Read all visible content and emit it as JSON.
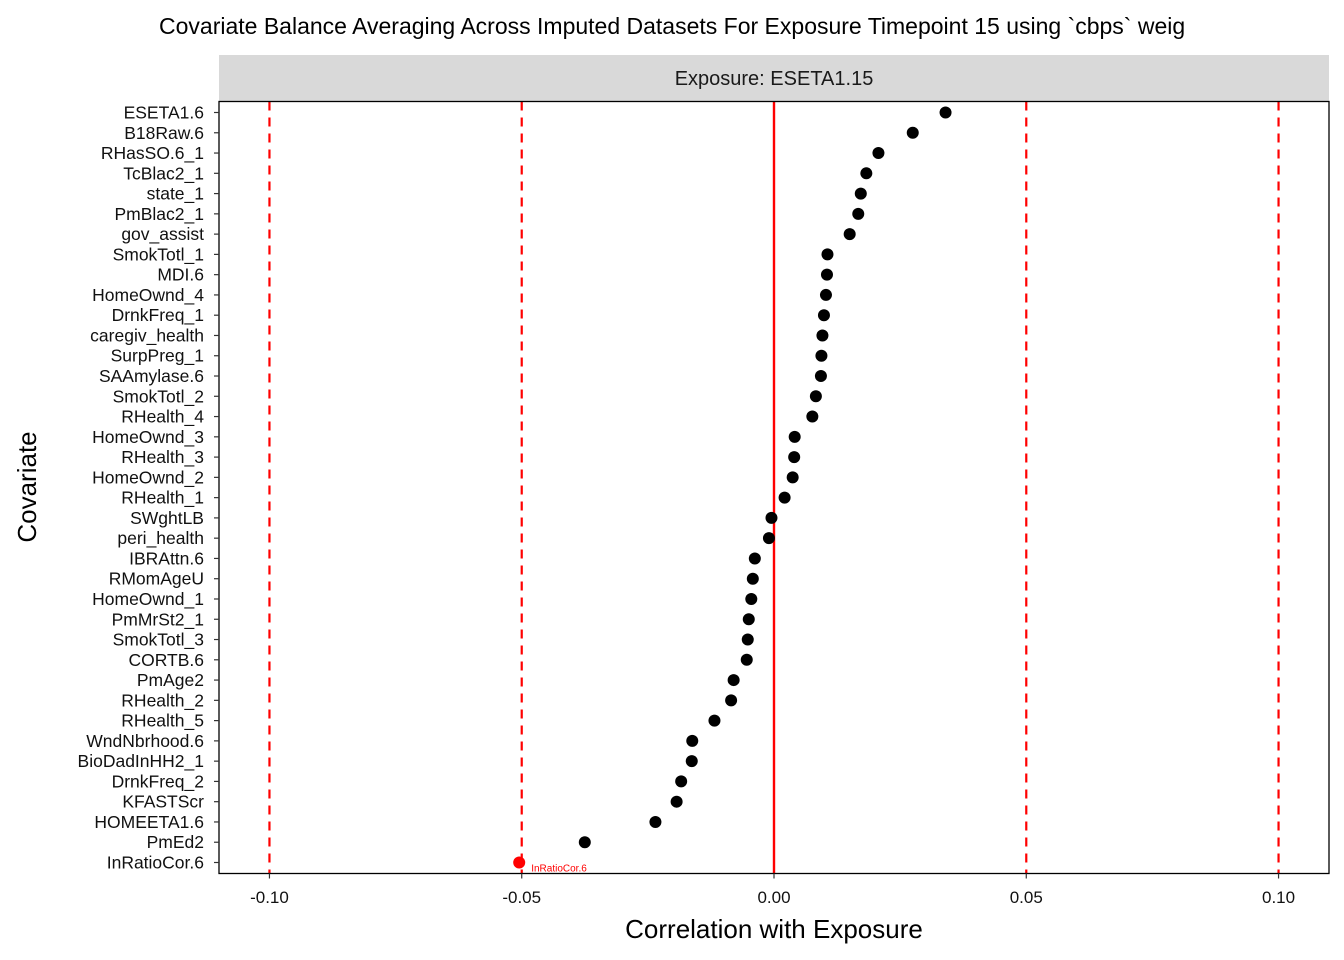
{
  "chart_data": {
    "type": "scatter",
    "title": "Covariate Balance Averaging Across Imputed Datasets For Exposure Timepoint 15 using `cbps` weig",
    "facet_label": "Exposure: ESETA1.15",
    "xlabel": "Correlation with Exposure",
    "ylabel": "Covariate",
    "xlim": [
      -0.11,
      0.11
    ],
    "x_ticks": [
      -0.1,
      -0.05,
      0.0,
      0.05,
      0.1
    ],
    "x_tick_labels": [
      "-0.10",
      "-0.05",
      "0.00",
      "0.05",
      "0.10"
    ],
    "grid": false,
    "reference_lines": {
      "solid": [
        0.0
      ],
      "dashed": [
        -0.1,
        -0.05,
        0.05,
        0.1
      ],
      "color": "#ff0000"
    },
    "point_color": "#000000",
    "highlight_color": "#ff0000",
    "points": [
      {
        "label": "ESETA1.6",
        "value": 0.034
      },
      {
        "label": "B18Raw.6",
        "value": 0.0275
      },
      {
        "label": "RHasSO.6_1",
        "value": 0.0207
      },
      {
        "label": "TcBlac2_1",
        "value": 0.0183
      },
      {
        "label": "state_1",
        "value": 0.0172
      },
      {
        "label": "PmBlac2_1",
        "value": 0.0167
      },
      {
        "label": "gov_assist",
        "value": 0.015
      },
      {
        "label": "SmokTotl_1",
        "value": 0.0106
      },
      {
        "label": "MDI.6",
        "value": 0.0105
      },
      {
        "label": "HomeOwnd_4",
        "value": 0.0103
      },
      {
        "label": "DrnkFreq_1",
        "value": 0.0099
      },
      {
        "label": "caregiv_health",
        "value": 0.0096
      },
      {
        "label": "SurpPreg_1",
        "value": 0.0094
      },
      {
        "label": "SAAmylase.6",
        "value": 0.0093
      },
      {
        "label": "SmokTotl_2",
        "value": 0.0083
      },
      {
        "label": "RHealth_4",
        "value": 0.0076
      },
      {
        "label": "HomeOwnd_3",
        "value": 0.0041
      },
      {
        "label": "RHealth_3",
        "value": 0.004
      },
      {
        "label": "HomeOwnd_2",
        "value": 0.0037
      },
      {
        "label": "RHealth_1",
        "value": 0.0021
      },
      {
        "label": "SWghtLB",
        "value": -0.0005
      },
      {
        "label": "peri_health",
        "value": -0.001
      },
      {
        "label": "IBRAttn.6",
        "value": -0.0038
      },
      {
        "label": "RMomAgeU",
        "value": -0.0042
      },
      {
        "label": "HomeOwnd_1",
        "value": -0.0045
      },
      {
        "label": "PmMrSt2_1",
        "value": -0.005
      },
      {
        "label": "SmokTotl_3",
        "value": -0.0052
      },
      {
        "label": "CORTB.6",
        "value": -0.0054
      },
      {
        "label": "PmAge2",
        "value": -0.008
      },
      {
        "label": "RHealth_2",
        "value": -0.0085
      },
      {
        "label": "RHealth_5",
        "value": -0.0118
      },
      {
        "label": "WndNbrhood.6",
        "value": -0.0162
      },
      {
        "label": "BioDadInHH2_1",
        "value": -0.0163
      },
      {
        "label": "DrnkFreq_2",
        "value": -0.0184
      },
      {
        "label": "KFASTScr",
        "value": -0.0193
      },
      {
        "label": "HOMEETA1.6",
        "value": -0.0235
      },
      {
        "label": "PmEd2",
        "value": -0.0375
      },
      {
        "label": "InRatioCor.6",
        "value": -0.0505,
        "highlight": true,
        "annotation": "InRatioCor.6"
      }
    ]
  }
}
